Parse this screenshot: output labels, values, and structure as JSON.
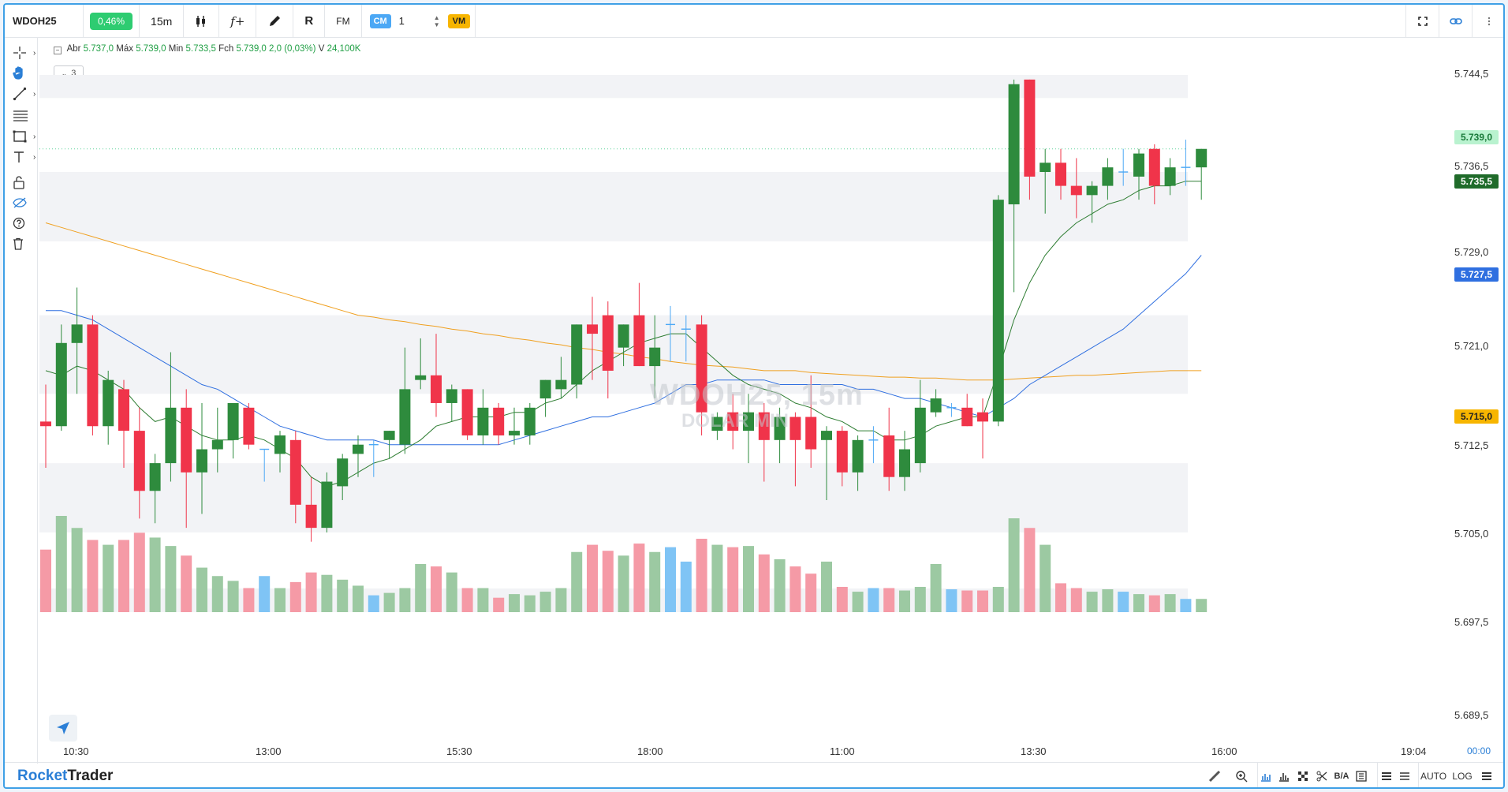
{
  "topbar": {
    "symbol": "WDOH25",
    "change": "0,46%",
    "timeframe": "15m",
    "cm_label": "CM",
    "quantity": "1",
    "vm_label": "VM",
    "fx_label": "f+",
    "rx_label": "R",
    "fm_label": "FM"
  },
  "ohlc": {
    "open_label": "Abr",
    "open": "5.737,0",
    "high_label": "Máx",
    "high": "5.739,0",
    "low_label": "Min",
    "low": "5.733,5",
    "close_label": "Fch",
    "close": "5.739,0",
    "change": "2,0 (0,03%)",
    "volume_label": "V",
    "volume": "24,100K",
    "collapse_count": "3"
  },
  "watermark": {
    "line1": "WDOH25, 15m",
    "line2": "DOLAR MIN"
  },
  "price_axis": [
    "5.744,5",
    "5.736,5",
    "5.729,0",
    "5.721,0",
    "5.712,5",
    "5.705,0",
    "5.697,5",
    "5.689,5"
  ],
  "price_badges": {
    "last": "5.739,0",
    "ma_short": "5.735,5",
    "ma_mid": "5.727,5",
    "ma_long": "5.715,0"
  },
  "time_axis": [
    "10:30",
    "13:00",
    "15:30",
    "18:00",
    "11:00",
    "13:30",
    "16:00",
    "19:04"
  ],
  "time_corner": "00:00",
  "bottombar": {
    "brand_a": "Rocket",
    "brand_b": "Trader",
    "ba_label": "B/A",
    "auto_label": "AUTO",
    "log_label": "LOG"
  },
  "colors": {
    "up": "#2e8b3d",
    "down": "#f0344a",
    "ma_short": "#2e7d32",
    "ma_mid": "#2f6fe0",
    "ma_long": "#f0a020",
    "accent": "#2b7fd6"
  },
  "chart_data": {
    "type": "candlestick",
    "y_range": [
      5694.0,
      5747.0
    ],
    "candles": [
      {
        "o": 5709.5,
        "h": 5713.5,
        "l": 5704.5,
        "c": 5709.0
      },
      {
        "o": 5709.0,
        "h": 5720.0,
        "l": 5708.5,
        "c": 5718.0
      },
      {
        "o": 5718.0,
        "h": 5724.0,
        "l": 5712.5,
        "c": 5720.0
      },
      {
        "o": 5720.0,
        "h": 5721.0,
        "l": 5708.0,
        "c": 5709.0
      },
      {
        "o": 5709.0,
        "h": 5715.0,
        "l": 5707.0,
        "c": 5714.0
      },
      {
        "o": 5713.0,
        "h": 5714.0,
        "l": 5704.5,
        "c": 5708.5
      },
      {
        "o": 5708.5,
        "h": 5711.0,
        "l": 5699.0,
        "c": 5702.0
      },
      {
        "o": 5702.0,
        "h": 5706.0,
        "l": 5698.5,
        "c": 5705.0
      },
      {
        "o": 5705.0,
        "h": 5717.0,
        "l": 5703.0,
        "c": 5711.0
      },
      {
        "o": 5711.0,
        "h": 5713.0,
        "l": 5698.0,
        "c": 5704.0
      },
      {
        "o": 5704.0,
        "h": 5711.5,
        "l": 5699.5,
        "c": 5706.5
      },
      {
        "o": 5706.5,
        "h": 5711.0,
        "l": 5704.0,
        "c": 5707.5
      },
      {
        "o": 5707.5,
        "h": 5711.0,
        "l": 5705.5,
        "c": 5711.5
      },
      {
        "o": 5711.0,
        "h": 5711.5,
        "l": 5706.5,
        "c": 5707.0
      },
      {
        "o": 5706.5,
        "h": 5706.5,
        "l": 5703.0,
        "c": 5706.5
      },
      {
        "o": 5706.0,
        "h": 5708.5,
        "l": 5704.0,
        "c": 5708.0
      },
      {
        "o": 5707.5,
        "h": 5708.5,
        "l": 5698.5,
        "c": 5700.5
      },
      {
        "o": 5700.5,
        "h": 5703.5,
        "l": 5696.5,
        "c": 5698.0
      },
      {
        "o": 5698.0,
        "h": 5704.0,
        "l": 5697.5,
        "c": 5703.0
      },
      {
        "o": 5702.5,
        "h": 5706.0,
        "l": 5701.0,
        "c": 5705.5
      },
      {
        "o": 5706.0,
        "h": 5708.0,
        "l": 5703.5,
        "c": 5707.0
      },
      {
        "o": 5707.0,
        "h": 5707.5,
        "l": 5703.5,
        "c": 5707.0
      },
      {
        "o": 5707.5,
        "h": 5708.5,
        "l": 5705.5,
        "c": 5708.5
      },
      {
        "o": 5707.0,
        "h": 5717.5,
        "l": 5706.0,
        "c": 5713.0
      },
      {
        "o": 5714.0,
        "h": 5718.5,
        "l": 5713.0,
        "c": 5714.5
      },
      {
        "o": 5714.5,
        "h": 5719.0,
        "l": 5710.0,
        "c": 5711.5
      },
      {
        "o": 5711.5,
        "h": 5713.5,
        "l": 5709.5,
        "c": 5713.0
      },
      {
        "o": 5713.0,
        "h": 5713.0,
        "l": 5707.5,
        "c": 5708.0
      },
      {
        "o": 5708.0,
        "h": 5713.0,
        "l": 5707.0,
        "c": 5711.0
      },
      {
        "o": 5711.0,
        "h": 5711.5,
        "l": 5707.0,
        "c": 5708.0
      },
      {
        "o": 5708.0,
        "h": 5711.0,
        "l": 5707.0,
        "c": 5708.5
      },
      {
        "o": 5708.0,
        "h": 5711.5,
        "l": 5707.0,
        "c": 5711.0
      },
      {
        "o": 5712.0,
        "h": 5714.0,
        "l": 5710.0,
        "c": 5714.0
      },
      {
        "o": 5713.0,
        "h": 5716.5,
        "l": 5712.0,
        "c": 5714.0
      },
      {
        "o": 5713.5,
        "h": 5720.0,
        "l": 5712.0,
        "c": 5720.0
      },
      {
        "o": 5720.0,
        "h": 5723.0,
        "l": 5714.0,
        "c": 5719.0
      },
      {
        "o": 5721.0,
        "h": 5722.5,
        "l": 5712.0,
        "c": 5715.0
      },
      {
        "o": 5717.5,
        "h": 5720.0,
        "l": 5715.5,
        "c": 5720.0
      },
      {
        "o": 5721.0,
        "h": 5724.5,
        "l": 5715.5,
        "c": 5715.5
      },
      {
        "o": 5715.5,
        "h": 5721.0,
        "l": 5712.0,
        "c": 5717.5
      },
      {
        "o": 5720.0,
        "h": 5722.0,
        "l": 5716.0,
        "c": 5720.0
      },
      {
        "o": 5719.5,
        "h": 5721.0,
        "l": 5716.0,
        "c": 5719.5
      },
      {
        "o": 5720.0,
        "h": 5721.0,
        "l": 5708.0,
        "c": 5710.5
      },
      {
        "o": 5708.5,
        "h": 5710.5,
        "l": 5707.5,
        "c": 5710.0
      },
      {
        "o": 5710.5,
        "h": 5712.5,
        "l": 5706.5,
        "c": 5708.5
      },
      {
        "o": 5708.5,
        "h": 5712.5,
        "l": 5705.0,
        "c": 5710.5
      },
      {
        "o": 5710.5,
        "h": 5711.5,
        "l": 5703.0,
        "c": 5707.5
      },
      {
        "o": 5707.5,
        "h": 5711.0,
        "l": 5705.0,
        "c": 5710.0
      },
      {
        "o": 5710.0,
        "h": 5710.5,
        "l": 5702.5,
        "c": 5707.5
      },
      {
        "o": 5710.0,
        "h": 5714.5,
        "l": 5704.5,
        "c": 5706.5
      },
      {
        "o": 5707.5,
        "h": 5709.0,
        "l": 5701.0,
        "c": 5708.5
      },
      {
        "o": 5708.5,
        "h": 5709.0,
        "l": 5702.5,
        "c": 5704.0
      },
      {
        "o": 5704.0,
        "h": 5708.0,
        "l": 5702.0,
        "c": 5707.5
      },
      {
        "o": 5707.5,
        "h": 5709.0,
        "l": 5705.0,
        "c": 5707.5
      },
      {
        "o": 5708.0,
        "h": 5711.0,
        "l": 5702.0,
        "c": 5703.5
      },
      {
        "o": 5703.5,
        "h": 5708.5,
        "l": 5702.0,
        "c": 5706.5
      },
      {
        "o": 5705.0,
        "h": 5714.0,
        "l": 5704.0,
        "c": 5711.0
      },
      {
        "o": 5710.5,
        "h": 5713.0,
        "l": 5710.0,
        "c": 5712.0
      },
      {
        "o": 5711.0,
        "h": 5711.5,
        "l": 5710.0,
        "c": 5711.0
      },
      {
        "o": 5711.0,
        "h": 5712.5,
        "l": 5709.0,
        "c": 5709.0
      },
      {
        "o": 5710.5,
        "h": 5712.0,
        "l": 5705.5,
        "c": 5709.5
      },
      {
        "o": 5709.5,
        "h": 5734.0,
        "l": 5709.0,
        "c": 5733.5
      },
      {
        "o": 5733.0,
        "h": 5746.5,
        "l": 5723.5,
        "c": 5746.0
      },
      {
        "o": 5746.5,
        "h": 5746.5,
        "l": 5733.5,
        "c": 5736.0
      },
      {
        "o": 5736.5,
        "h": 5739.0,
        "l": 5732.0,
        "c": 5737.5
      },
      {
        "o": 5737.5,
        "h": 5739.0,
        "l": 5733.5,
        "c": 5735.0
      },
      {
        "o": 5735.0,
        "h": 5738.0,
        "l": 5731.5,
        "c": 5734.0
      },
      {
        "o": 5734.0,
        "h": 5735.5,
        "l": 5731.0,
        "c": 5735.0
      },
      {
        "o": 5735.0,
        "h": 5738.0,
        "l": 5733.5,
        "c": 5737.0
      },
      {
        "o": 5736.5,
        "h": 5739.0,
        "l": 5735.0,
        "c": 5736.5
      },
      {
        "o": 5736.0,
        "h": 5739.0,
        "l": 5733.5,
        "c": 5738.5
      },
      {
        "o": 5739.0,
        "h": 5739.5,
        "l": 5733.0,
        "c": 5735.0
      },
      {
        "o": 5735.0,
        "h": 5738.0,
        "l": 5734.0,
        "c": 5737.0
      },
      {
        "o": 5737.0,
        "h": 5740.0,
        "l": 5735.0,
        "c": 5737.0
      },
      {
        "o": 5737.0,
        "h": 5739.0,
        "l": 5733.5,
        "c": 5739.0
      }
    ],
    "volume": [
      52,
      80,
      70,
      60,
      56,
      60,
      66,
      62,
      55,
      47,
      37,
      30,
      26,
      20,
      30,
      20,
      25,
      33,
      31,
      27,
      22,
      14,
      16,
      20,
      40,
      38,
      33,
      20,
      20,
      12,
      15,
      14,
      17,
      20,
      50,
      56,
      51,
      47,
      57,
      50,
      54,
      42,
      61,
      56,
      54,
      55,
      48,
      44,
      38,
      32,
      42,
      21,
      17,
      20,
      20,
      18,
      21,
      40,
      19,
      18,
      18,
      21,
      78,
      70,
      56,
      24,
      20,
      17,
      19,
      17,
      15,
      14,
      15,
      11,
      11
    ],
    "ma_short": [
      5715.0,
      5714.5,
      5715.5,
      5715.0,
      5714.0,
      5713.0,
      5711.0,
      5709.5,
      5710.0,
      5709.0,
      5708.0,
      5707.5,
      5707.5,
      5708.0,
      5707.5,
      5706.5,
      5705.5,
      5703.5,
      5702.5,
      5703.0,
      5704.0,
      5705.0,
      5705.5,
      5706.5,
      5707.5,
      5709.0,
      5709.5,
      5710.0,
      5710.0,
      5710.0,
      5710.5,
      5710.5,
      5711.5,
      5712.0,
      5713.5,
      5715.0,
      5716.0,
      5717.0,
      5718.0,
      5718.5,
      5719.0,
      5719.0,
      5717.5,
      5716.0,
      5714.5,
      5713.5,
      5713.0,
      5712.5,
      5711.5,
      5711.0,
      5710.0,
      5709.5,
      5708.5,
      5708.5,
      5707.5,
      5707.5,
      5708.0,
      5709.0,
      5709.5,
      5710.0,
      5710.0,
      5715.0,
      5720.5,
      5724.5,
      5727.5,
      5729.5,
      5731.0,
      5732.0,
      5733.0,
      5733.5,
      5734.5,
      5735.0,
      5735.0,
      5735.5,
      5735.5
    ],
    "ma_mid": [
      5721.5,
      5721.5,
      5721.0,
      5720.5,
      5719.5,
      5718.5,
      5717.5,
      5716.5,
      5715.5,
      5714.5,
      5713.5,
      5713.0,
      5712.0,
      5711.0,
      5710.0,
      5709.0,
      5708.5,
      5708.0,
      5707.5,
      5707.5,
      5707.5,
      5707.5,
      5707.0,
      5707.0,
      5707.0,
      5707.0,
      5707.0,
      5707.0,
      5707.0,
      5707.0,
      5707.5,
      5708.0,
      5708.5,
      5709.0,
      5709.5,
      5710.0,
      5710.0,
      5710.5,
      5711.0,
      5711.5,
      5712.5,
      5713.5,
      5713.5,
      5714.0,
      5714.0,
      5714.0,
      5714.0,
      5713.5,
      5713.5,
      5713.5,
      5713.5,
      5713.5,
      5713.0,
      5713.0,
      5712.5,
      5712.0,
      5712.0,
      5711.5,
      5711.0,
      5710.5,
      5710.0,
      5711.0,
      5712.0,
      5713.5,
      5714.5,
      5715.5,
      5716.5,
      5717.5,
      5718.5,
      5719.5,
      5721.0,
      5722.5,
      5724.0,
      5725.5,
      5727.5
    ],
    "ma_long": [
      5731.0,
      5730.5,
      5730.0,
      5729.5,
      5729.0,
      5728.5,
      5728.0,
      5727.5,
      5727.0,
      5726.5,
      5726.0,
      5725.5,
      5725.0,
      5724.5,
      5724.0,
      5723.5,
      5723.0,
      5722.5,
      5722.0,
      5721.5,
      5721.0,
      5720.8,
      5720.5,
      5720.3,
      5720.0,
      5719.8,
      5719.5,
      5719.3,
      5719.0,
      5718.8,
      5718.5,
      5718.3,
      5718.0,
      5717.8,
      5717.5,
      5717.3,
      5717.0,
      5716.8,
      5716.5,
      5716.3,
      5716.0,
      5715.8,
      5715.6,
      5715.5,
      5715.4,
      5715.2,
      5715.0,
      5715.0,
      5715.0,
      5714.8,
      5714.7,
      5714.6,
      5714.5,
      5714.4,
      5714.3,
      5714.3,
      5714.2,
      5714.2,
      5714.1,
      5714.0,
      5714.0,
      5714.0,
      5714.1,
      5714.2,
      5714.3,
      5714.4,
      5714.5,
      5714.5,
      5714.6,
      5714.7,
      5714.8,
      5714.9,
      5715.0,
      5715.0,
      5715.0
    ]
  }
}
